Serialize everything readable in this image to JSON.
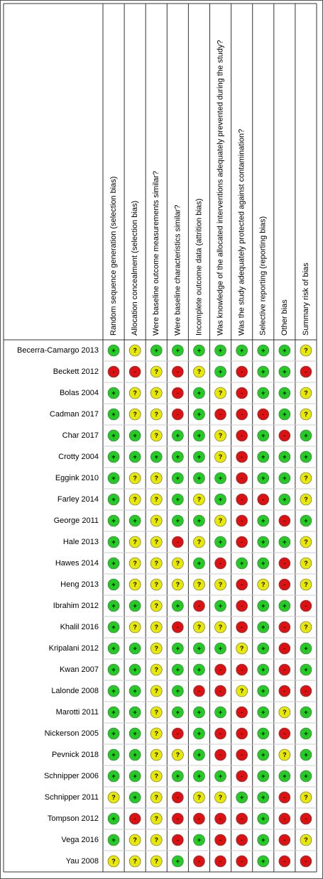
{
  "columns": [
    "Random sequence generation (selection bias)",
    "Allocation concealment (selection bias)",
    "Were baseline outcome measurements similar?",
    "Were baseline characteristics similar?",
    "Incomplete outcome data (attrition bias)",
    "Was knowledge of the allocated interventions adequately prevented during the study?",
    "Was the study adequately protected against contamination?",
    "Selective reporting (reporting bias)",
    "Other bias",
    "Summary risk of bias"
  ],
  "colors": {
    "+": "#22cc22",
    "?": "#e8e800",
    "-": "#dd1111"
  },
  "rows": [
    {
      "name": "Becerra-Camargo 2013",
      "judgments": [
        "+",
        "?",
        "+",
        "+",
        "+",
        "+",
        "+",
        "+",
        "+",
        "?"
      ]
    },
    {
      "name": "Beckett 2012",
      "judgments": [
        "-",
        "-",
        "?",
        "-",
        "?",
        "+",
        "-",
        "+",
        "+",
        "-"
      ]
    },
    {
      "name": "Bolas 2004",
      "judgments": [
        "+",
        "?",
        "?",
        "-",
        "+",
        "?",
        "-",
        "+",
        "+",
        "?"
      ]
    },
    {
      "name": "Cadman 2017",
      "judgments": [
        "+",
        "?",
        "?",
        "-",
        "+",
        "-",
        "-",
        "-",
        "+",
        "?"
      ]
    },
    {
      "name": "Char 2017",
      "judgments": [
        "+",
        "+",
        "?",
        "+",
        "+",
        "?",
        "-",
        "+",
        "-",
        "+"
      ]
    },
    {
      "name": "Crotty 2004",
      "judgments": [
        "+",
        "+",
        "+",
        "+",
        "+",
        "?",
        "-",
        "+",
        "+",
        "+"
      ]
    },
    {
      "name": "Eggink 2010",
      "judgments": [
        "+",
        "?",
        "?",
        "+",
        "+",
        "+",
        "-",
        "+",
        "+",
        "?"
      ]
    },
    {
      "name": "Farley 2014",
      "judgments": [
        "+",
        "?",
        "?",
        "+",
        "?",
        "+",
        "-",
        "-",
        "+",
        "?"
      ]
    },
    {
      "name": "George 2011",
      "judgments": [
        "+",
        "+",
        "?",
        "+",
        "+",
        "?",
        "-",
        "+",
        "-",
        "+"
      ]
    },
    {
      "name": "Hale 2013",
      "judgments": [
        "+",
        "?",
        "?",
        "-",
        "?",
        "+",
        "-",
        "+",
        "+",
        "?"
      ]
    },
    {
      "name": "Hawes 2014",
      "judgments": [
        "+",
        "?",
        "?",
        "?",
        "+",
        "-",
        "+",
        "+",
        "-",
        "?"
      ]
    },
    {
      "name": "Heng 2013",
      "judgments": [
        "+",
        "?",
        "?",
        "?",
        "?",
        "?",
        "-",
        "?",
        "-",
        "?"
      ]
    },
    {
      "name": "Ibrahim 2012",
      "judgments": [
        "+",
        "+",
        "?",
        "+",
        "-",
        "+",
        "-",
        "+",
        "+",
        "-"
      ]
    },
    {
      "name": "Khalil 2016",
      "judgments": [
        "+",
        "?",
        "?",
        "-",
        "?",
        "?",
        "-",
        "+",
        "-",
        "?"
      ]
    },
    {
      "name": "Kripalani 2012",
      "judgments": [
        "+",
        "+",
        "?",
        "+",
        "+",
        "+",
        "?",
        "+",
        "-",
        "+"
      ]
    },
    {
      "name": "Kwan 2007",
      "judgments": [
        "+",
        "+",
        "?",
        "+",
        "+",
        "-",
        "-",
        "+",
        "-",
        "+"
      ]
    },
    {
      "name": "Lalonde 2008",
      "judgments": [
        "+",
        "+",
        "?",
        "+",
        "-",
        "-",
        "?",
        "+",
        "-",
        "-"
      ]
    },
    {
      "name": "Marotti 2011",
      "judgments": [
        "+",
        "+",
        "?",
        "+",
        "+",
        "+",
        "-",
        "+",
        "?",
        "+"
      ]
    },
    {
      "name": "Nickerson 2005",
      "judgments": [
        "+",
        "+",
        "?",
        "-",
        "+",
        "-",
        "-",
        "+",
        "-",
        "+"
      ]
    },
    {
      "name": "Pevnick 2018",
      "judgments": [
        "+",
        "+",
        "?",
        "?",
        "+",
        "-",
        "-",
        "+",
        "?",
        "+"
      ]
    },
    {
      "name": "Schnipper 2006",
      "judgments": [
        "+",
        "+",
        "?",
        "+",
        "+",
        "+",
        "-",
        "+",
        "+",
        "+"
      ]
    },
    {
      "name": "Schnipper 2011",
      "judgments": [
        "?",
        "+",
        "?",
        "-",
        "?",
        "?",
        "+",
        "+",
        "-",
        "?"
      ]
    },
    {
      "name": "Tompson 2012",
      "judgments": [
        "+",
        "-",
        "?",
        "-",
        "-",
        "-",
        "-",
        "+",
        "-",
        "-"
      ]
    },
    {
      "name": "Vega 2016",
      "judgments": [
        "+",
        "?",
        "?",
        "-",
        "+",
        "-",
        "-",
        "+",
        "-",
        "?"
      ]
    },
    {
      "name": "Yau 2008",
      "judgments": [
        "?",
        "?",
        "?",
        "+",
        "-",
        "-",
        "-",
        "+",
        "-",
        "-"
      ]
    }
  ]
}
